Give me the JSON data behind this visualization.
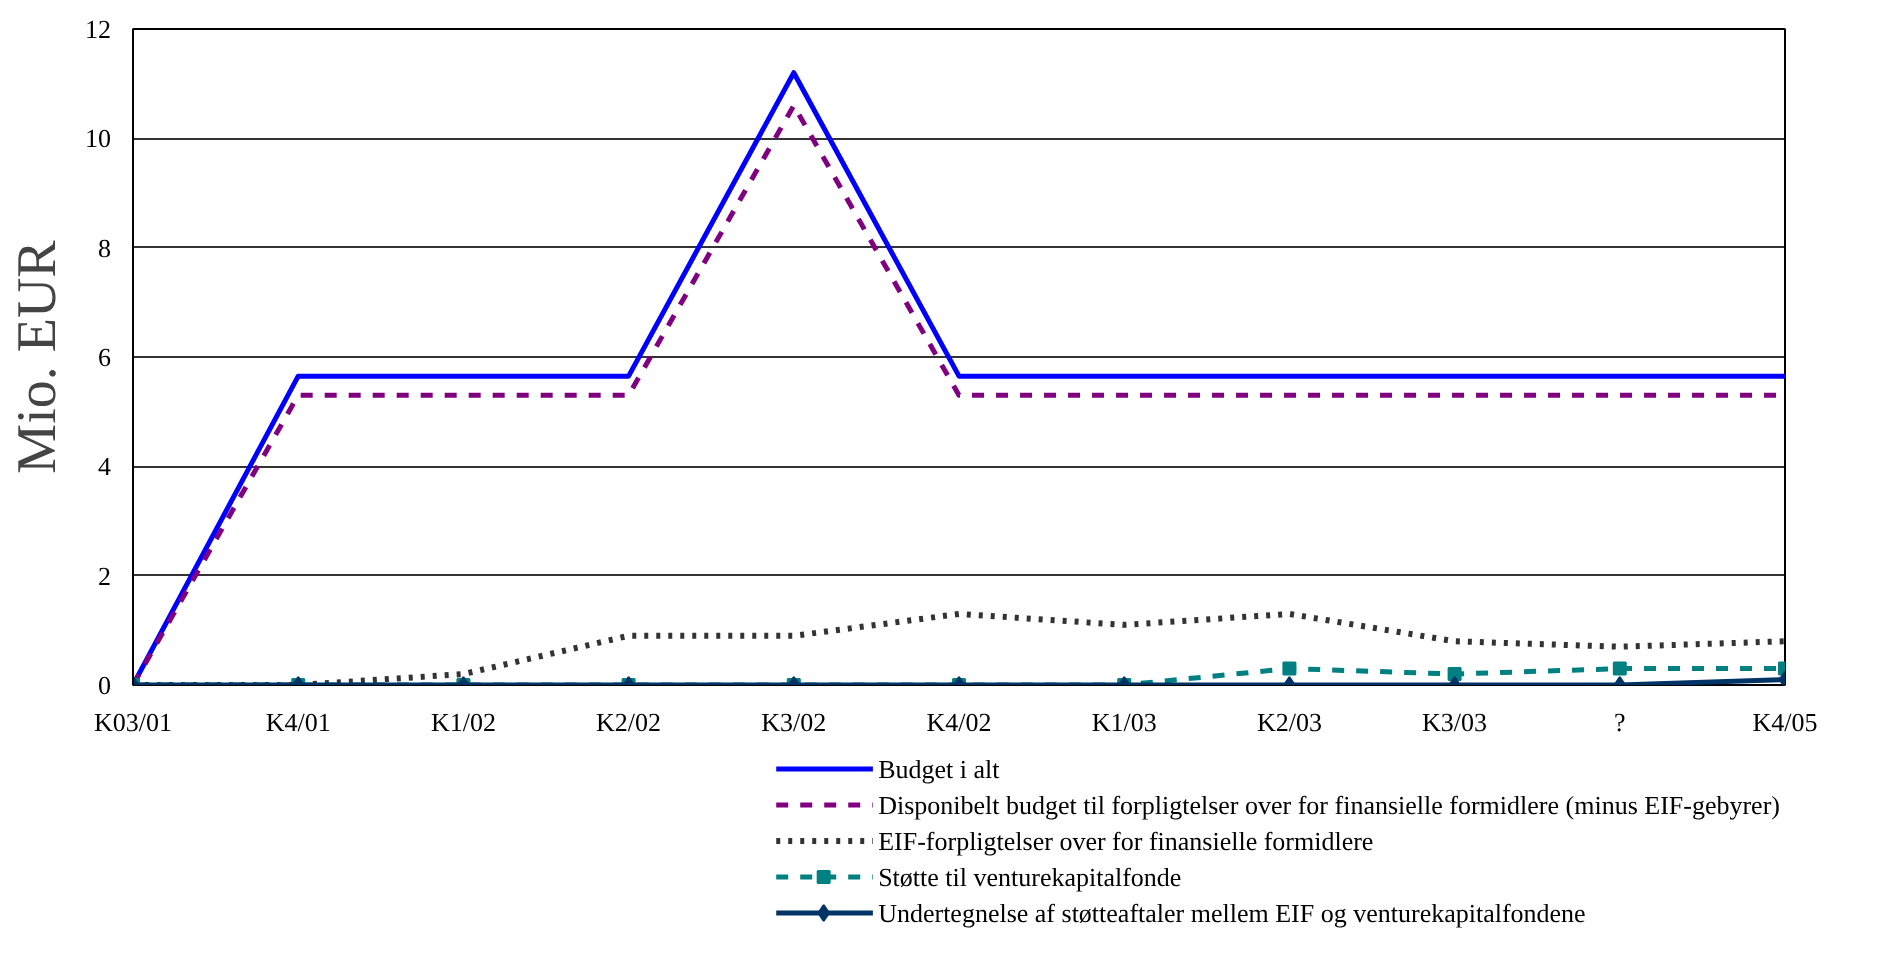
{
  "chart_data": {
    "type": "line",
    "ylabel": "Mio. EUR",
    "categories": [
      "K03/01",
      "K4/01",
      "K1/02",
      "K2/02",
      "K3/02",
      "K4/02",
      "K1/03",
      "K2/03",
      "K3/03",
      "?",
      "K4/05"
    ],
    "ylim": [
      0,
      12
    ],
    "yticks": [
      0,
      2,
      4,
      6,
      8,
      10,
      12
    ],
    "grid": "y",
    "legend": "bottom",
    "series": [
      {
        "name": "Budget i alt",
        "color": "#0000ff",
        "line_style": "solid",
        "marker": "none",
        "values": [
          0,
          5.65,
          5.65,
          5.65,
          11.2,
          5.65,
          5.65,
          5.65,
          5.65,
          5.65,
          5.65
        ]
      },
      {
        "name": "Disponibelt budget til forpligtelser over for finansielle formidlere (minus EIF-gebyrer)",
        "color": "#800080",
        "line_style": "dashed",
        "marker": "none",
        "values": [
          0,
          5.3,
          5.3,
          5.3,
          10.6,
          5.3,
          5.3,
          5.3,
          5.3,
          5.3,
          5.3
        ]
      },
      {
        "name": "EIF-forpligtelser over for finansielle formidlere",
        "color": "#333333",
        "line_style": "dotted",
        "marker": "none",
        "values": [
          0,
          0,
          0.2,
          0.9,
          0.9,
          1.3,
          1.1,
          1.3,
          0.8,
          0.7,
          0.8
        ]
      },
      {
        "name": "Støtte til venturekapitalfonde",
        "color": "#008080",
        "line_style": "dashed",
        "marker": "square",
        "values": [
          0,
          0,
          0,
          0,
          0,
          0,
          0,
          0.3,
          0.2,
          0.3,
          0.3
        ]
      },
      {
        "name": "Undertegnelse af støtteaftaler mellem EIF og venturekapitalfondene",
        "color": "#003366",
        "line_style": "solid",
        "marker": "diamond",
        "values": [
          0,
          0,
          0,
          0,
          0,
          0,
          0,
          0,
          0,
          0,
          0.1
        ]
      }
    ]
  }
}
